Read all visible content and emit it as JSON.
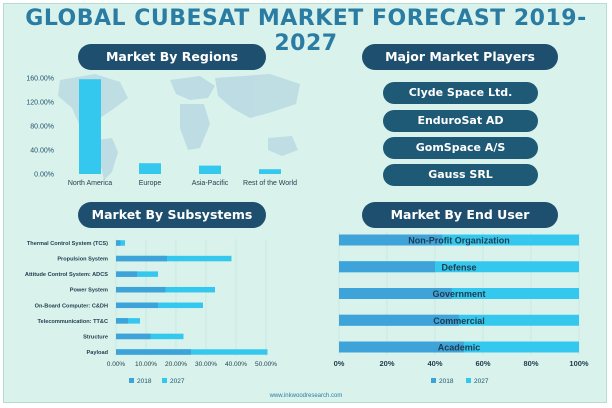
{
  "title": "GLOBAL CUBESAT MARKET FORECAST 2019-2027",
  "sections": {
    "regions": "Market By Regions",
    "players": "Major Market Players",
    "subsystems": "Market By Subsystems",
    "end_user": "Market By End User"
  },
  "players": [
    "Clyde Space Ltd.",
    "EnduroSat AD",
    "GomSpace A/S",
    "Gauss SRL"
  ],
  "footer_url": "www.inkwoodresearch.com",
  "colors": {
    "dark": "#1f4f6e",
    "title": "#2a7ca3",
    "c2018": "#3ea3d8",
    "c2027": "#35c8ef",
    "bg": "#d9f3ec"
  },
  "chart_data": [
    {
      "type": "bar",
      "title": "Market By Regions",
      "categories": [
        "North America",
        "Europe",
        "Asia-Pacific",
        "Rest of the World"
      ],
      "values": [
        158,
        18,
        14,
        8
      ],
      "ylim": [
        0,
        160
      ],
      "yticks": [
        "0.00%",
        "40.00%",
        "80.00%",
        "120.00%",
        "160.00%"
      ]
    },
    {
      "type": "bar",
      "orientation": "horizontal",
      "title": "Market By Subsystems",
      "categories": [
        "Thermal Control System (TCS)",
        "Propulsion System",
        "Attitude Control System: ADCS",
        "Power System",
        "On-Board Computer: C&DH",
        "Telecommunication: TT&C",
        "Structure",
        "Payload"
      ],
      "series": [
        {
          "name": "2018",
          "values": [
            1.5,
            17,
            7,
            16.5,
            14,
            4,
            11.5,
            25
          ]
        },
        {
          "name": "2027",
          "values": [
            3,
            38.5,
            14,
            33,
            29,
            8,
            22.5,
            50.5
          ]
        }
      ],
      "xlim": [
        0,
        50
      ],
      "xticks": [
        "0.00%",
        "10.00%",
        "20.00%",
        "30.00%",
        "40.00%",
        "50.00%"
      ]
    },
    {
      "type": "bar",
      "orientation": "horizontal",
      "stacked": "overlay",
      "title": "Market By End User",
      "categories": [
        "Non-Profit Organization",
        "Defense",
        "Government",
        "Commercial",
        "Academic"
      ],
      "series": [
        {
          "name": "2018",
          "values": [
            43,
            40,
            47,
            50,
            52
          ]
        },
        {
          "name": "2027",
          "values": [
            100,
            100,
            100,
            100,
            100
          ]
        }
      ],
      "xlim": [
        0,
        100
      ],
      "xticks": [
        "0%",
        "20%",
        "40%",
        "60%",
        "80%",
        "100%"
      ]
    }
  ]
}
